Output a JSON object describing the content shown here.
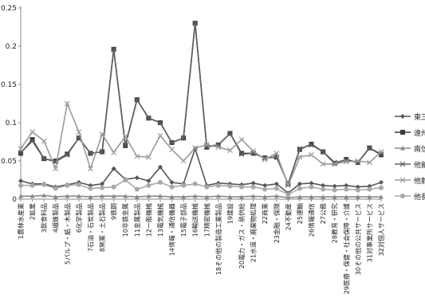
{
  "chart_data": {
    "type": "line",
    "title": "",
    "xlabel": "",
    "ylabel": "",
    "ylim": [
      0,
      0.25
    ],
    "yticks": [
      "0",
      "0.05",
      "0.1",
      "0.15",
      "0.2",
      "0.25"
    ],
    "grid": false,
    "legend_position": "right (clipped)",
    "categories": [
      "1農林水産業",
      "2鉱業",
      "3飲食料品",
      "4繊維製品",
      "5パルプ・紙・木製品",
      "6化学製品",
      "7石油・石炭製品",
      "8窯業・土石製品",
      "9鉄鋼",
      "10非鉄金属",
      "11金属製品",
      "12一般機械",
      "13電気機械",
      "14情報・通信機器",
      "15電子部品",
      "16輸送機械",
      "17精密機械",
      "18その他の製造工業製品",
      "19建設",
      "20電力・ガス・熱供給",
      "21水道・廃棄物処理",
      "22商業",
      "23金融・保険",
      "24不動産",
      "25運輸",
      "26情報通信",
      "27公務",
      "28教育・研究",
      "29医療・保健・社会保障・介護",
      "30その他の公共サービス",
      "31対事業所サービス",
      "32対個人サービス"
    ],
    "series": [
      {
        "name": "東三",
        "color": "#555555",
        "marker": "diamond",
        "values": [
          0.024,
          0.02,
          0.02,
          0.016,
          0.019,
          0.022,
          0.018,
          0.02,
          0.04,
          0.026,
          0.028,
          0.024,
          0.042,
          0.022,
          0.02,
          0.066,
          0.018,
          0.021,
          0.02,
          0.019,
          0.021,
          0.018,
          0.02,
          0.008,
          0.02,
          0.021,
          0.018,
          0.017,
          0.018,
          0.016,
          0.017,
          0.022
        ]
      },
      {
        "name": "遠州",
        "color": "#3a3a3a",
        "marker": "square",
        "values": [
          0.06,
          0.078,
          0.053,
          0.05,
          0.059,
          0.08,
          0.06,
          0.062,
          0.196,
          0.07,
          0.13,
          0.106,
          0.1,
          0.074,
          0.08,
          0.23,
          0.068,
          0.071,
          0.086,
          0.06,
          0.06,
          0.054,
          0.055,
          0.02,
          0.065,
          0.072,
          0.062,
          0.047,
          0.052,
          0.048,
          0.067,
          0.058
        ]
      },
      {
        "name": "南信",
        "color": "#8a8a8a",
        "marker": "triangle",
        "values": [
          0.004,
          0.004,
          0.005,
          0.003,
          0.004,
          0.004,
          0.003,
          0.004,
          0.004,
          0.004,
          0.003,
          0.004,
          0.004,
          0.003,
          0.003,
          0.004,
          0.003,
          0.004,
          0.003,
          0.003,
          0.004,
          0.003,
          0.004,
          0.002,
          0.003,
          0.003,
          0.003,
          0.003,
          0.003,
          0.003,
          0.003,
          0.003
        ]
      },
      {
        "name": "他飯",
        "color": "#606060",
        "marker": "x",
        "values": [
          0.061,
          0.076,
          0.053,
          0.049,
          0.058,
          0.08,
          0.06,
          0.062,
          0.196,
          0.071,
          0.13,
          0.106,
          0.1,
          0.074,
          0.08,
          0.23,
          0.069,
          0.071,
          0.086,
          0.059,
          0.06,
          0.054,
          0.055,
          0.02,
          0.066,
          0.071,
          0.062,
          0.048,
          0.051,
          0.048,
          0.067,
          0.059
        ]
      },
      {
        "name": "他静",
        "color": "#9a9a9a",
        "marker": "x",
        "values": [
          0.066,
          0.088,
          0.076,
          0.04,
          0.125,
          0.088,
          0.04,
          0.085,
          0.061,
          0.082,
          0.056,
          0.055,
          0.083,
          0.065,
          0.05,
          0.067,
          0.071,
          0.068,
          0.064,
          0.078,
          0.063,
          0.052,
          0.06,
          0.018,
          0.055,
          0.058,
          0.046,
          0.046,
          0.049,
          0.05,
          0.048,
          0.062
        ]
      },
      {
        "name": "他長",
        "color": "#a8a8a8",
        "marker": "circle",
        "values": [
          0.018,
          0.018,
          0.019,
          0.014,
          0.018,
          0.019,
          0.014,
          0.015,
          0.016,
          0.025,
          0.013,
          0.018,
          0.022,
          0.016,
          0.018,
          0.02,
          0.016,
          0.018,
          0.017,
          0.016,
          0.016,
          0.013,
          0.014,
          0.006,
          0.014,
          0.016,
          0.013,
          0.012,
          0.013,
          0.012,
          0.013,
          0.015
        ]
      }
    ]
  }
}
